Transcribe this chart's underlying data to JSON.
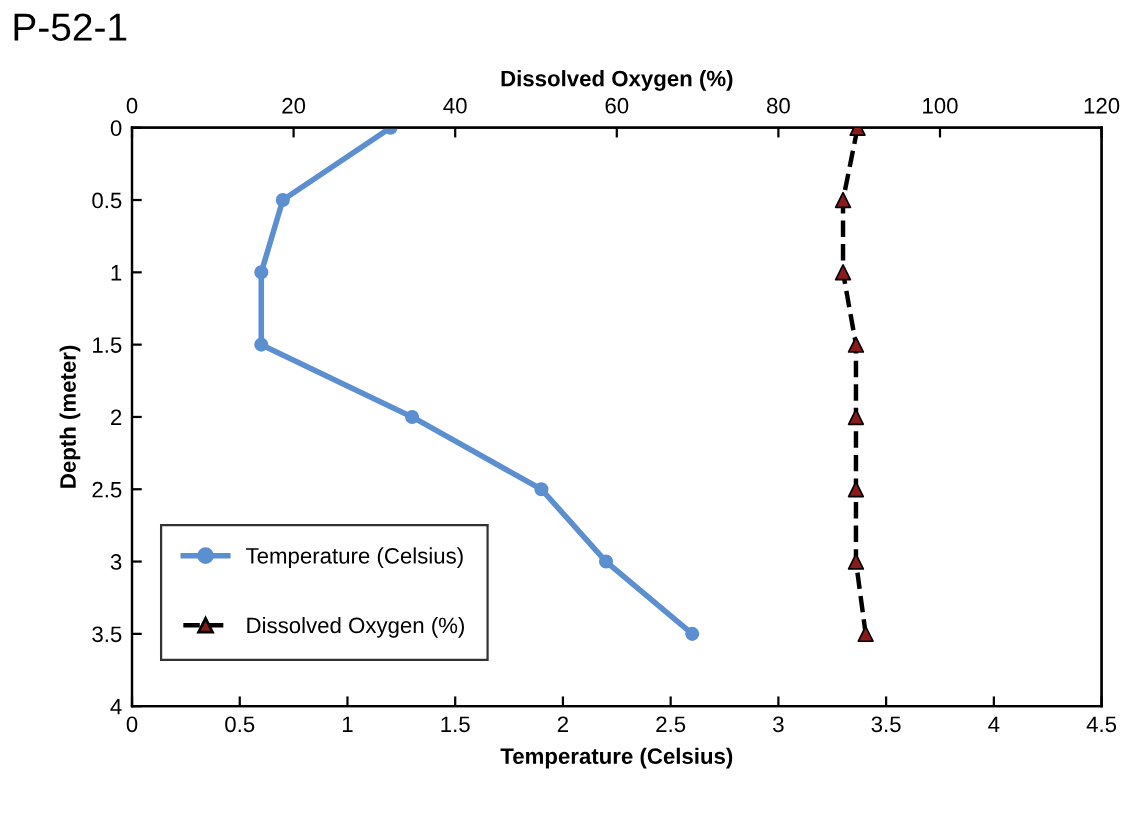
{
  "chart_data": {
    "type": "line",
    "title": "P-52-1",
    "xlabel": "Temperature (Celsius)",
    "x2label": "Dissolved Oxygen (%)",
    "ylabel": "Depth (meter)",
    "xlim": [
      0,
      4.5
    ],
    "xticks": [
      0,
      0.5,
      1,
      1.5,
      2,
      2.5,
      3,
      3.5,
      4,
      4.5
    ],
    "x2lim": [
      0,
      120
    ],
    "x2ticks": [
      0,
      20,
      40,
      60,
      80,
      100,
      120
    ],
    "ylim": [
      4,
      0
    ],
    "yticks": [
      0,
      0.5,
      1,
      1.5,
      2,
      2.5,
      3,
      3.5,
      4
    ],
    "grid": false,
    "legend": "bottom left",
    "series": [
      {
        "name": "Temperature (Celsius)",
        "color": "#5b8fd0",
        "marker": "circle",
        "line_style": "solid",
        "x": [
          1.2,
          0.7,
          0.6,
          0.6,
          1.3,
          1.9,
          2.2,
          2.6
        ],
        "values": [
          0,
          0.5,
          1,
          1.5,
          2,
          2.5,
          3,
          3.5
        ]
      },
      {
        "name": "Dissolved Oxygen (%)",
        "axis": "x2",
        "color": "#000000",
        "colors": [
          "#8b1a1a",
          "#8b1a1a",
          "#8b1a1a",
          "#8b1a1a",
          "#8b1a1a",
          "#8b1a1a",
          "#8b1a1a",
          "#8b1a1a"
        ],
        "marker": "triangle",
        "line_style": "dashed",
        "x": [
          89.8,
          88,
          88,
          89.6,
          89.6,
          89.6,
          89.6,
          90.8
        ],
        "values": [
          0,
          0.5,
          1,
          1.5,
          2,
          2.5,
          3,
          3.5
        ]
      }
    ]
  }
}
